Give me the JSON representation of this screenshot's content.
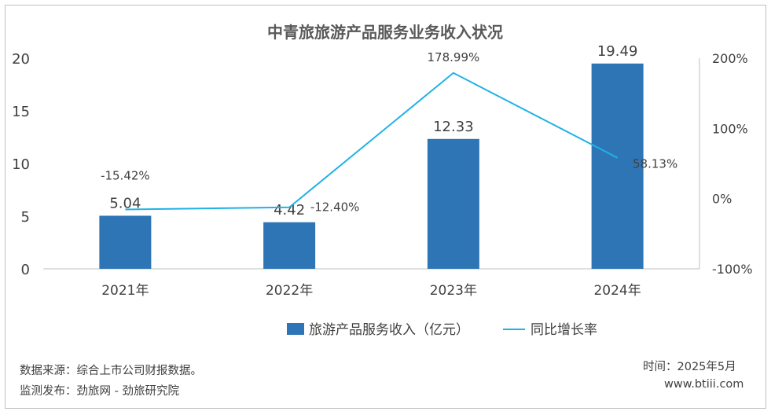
{
  "chart_data": {
    "type": "bar",
    "title": "中青旅旅游产品服务业务收入状况",
    "categories": [
      "2021年",
      "2022年",
      "2023年",
      "2024年"
    ],
    "series": [
      {
        "name": "旅游产品服务收入（亿元）",
        "type": "bar",
        "axis": "left",
        "color": "#2e75b6",
        "values": [
          5.04,
          4.42,
          12.33,
          19.49
        ],
        "labels": [
          "5.04",
          "4.42",
          "12.33",
          "19.49"
        ]
      },
      {
        "name": "同比增长率",
        "type": "line",
        "axis": "right",
        "color": "#1fb2e6",
        "values": [
          -15.42,
          -12.4,
          178.99,
          58.13
        ],
        "labels": [
          "-15.42%",
          "-12.40%",
          "178.99%",
          "58.13%"
        ]
      }
    ],
    "ylim": [
      0,
      20
    ],
    "y_ticks": [
      "0",
      "5",
      "10",
      "15",
      "20"
    ],
    "y2lim": [
      -100,
      200
    ],
    "y2_ticks": [
      "-100%",
      "0%",
      "100%",
      "200%"
    ],
    "grid": false,
    "legend": "bottom-center"
  },
  "footer": {
    "source": "数据来源：综合上市公司财报数据。",
    "monitor": "监测发布：劲旅网 - 劲旅研究院",
    "date": "时间：2025年5月",
    "website": "www.btiii.com"
  }
}
